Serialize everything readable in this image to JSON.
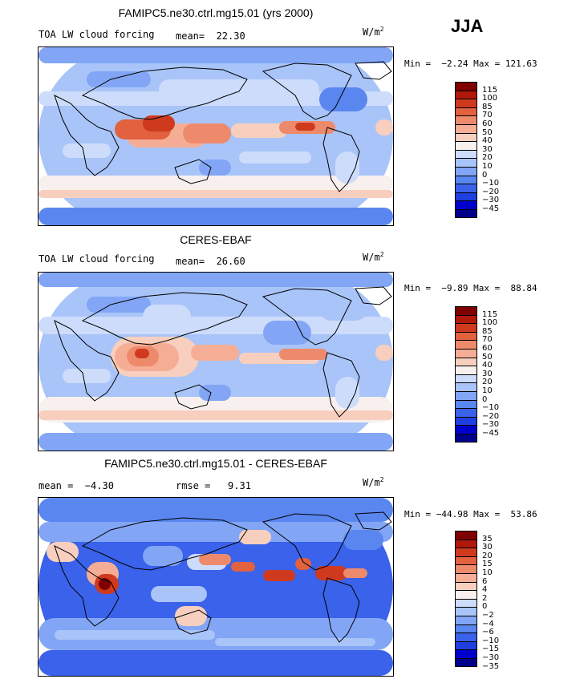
{
  "season": "JJA",
  "colors": {
    "model_levels": [
      "#00008b",
      "#0000cd",
      "#1f3fe0",
      "#3a62ea",
      "#5a86f0",
      "#82a6f5",
      "#a9c4f8",
      "#cddcfb",
      "#f7f0ee",
      "#f8cfbe",
      "#f5ad95",
      "#ee8a6c",
      "#e2613f",
      "#cf3a1e",
      "#b1180c",
      "#7f0000"
    ],
    "diff_levels": [
      "#00008b",
      "#0000cd",
      "#1f3fe0",
      "#3a62ea",
      "#5a86f0",
      "#82a6f5",
      "#a9c4f8",
      "#cddcfb",
      "#f7f0ee",
      "#f8cfbe",
      "#f5ad95",
      "#ee8a6c",
      "#e2613f",
      "#cf3a1e",
      "#b1180c",
      "#7f0000"
    ]
  },
  "panels": [
    {
      "title": "FAMIPC5.ne30.ctrl.mg15.01 (yrs 2000)",
      "left_label": "TOA LW cloud forcing",
      "stat_label": "mean=  22.30",
      "units": "W/m",
      "units_exp": "2",
      "minmax": "Min =  −2.24 Max = 121.63",
      "cbar_labels": [
        "115",
        "100",
        "85",
        "70",
        "60",
        "50",
        "40",
        "30",
        "20",
        "10",
        "0",
        "−10",
        "−20",
        "−30",
        "−45"
      ]
    },
    {
      "title": "CERES-EBAF",
      "left_label": "TOA LW cloud forcing",
      "stat_label": "mean=  26.60",
      "units": "W/m",
      "units_exp": "2",
      "minmax": "Min =  −9.89 Max =  88.84",
      "cbar_labels": [
        "115",
        "100",
        "85",
        "70",
        "60",
        "50",
        "40",
        "30",
        "20",
        "10",
        "0",
        "−10",
        "−20",
        "−30",
        "−45"
      ]
    },
    {
      "title": "FAMIPC5.ne30.ctrl.mg15.01 - CERES-EBAF",
      "left_label": "mean =  −4.30",
      "stat_label": "rmse =   9.31",
      "units": "W/m",
      "units_exp": "2",
      "minmax": "Min = −44.98 Max =  53.86",
      "cbar_labels": [
        "35",
        "30",
        "20",
        "15",
        "10",
        "6",
        "4",
        "2",
        "0",
        "−2",
        "−4",
        "−6",
        "−10",
        "−15",
        "−30",
        "−35"
      ]
    }
  ]
}
